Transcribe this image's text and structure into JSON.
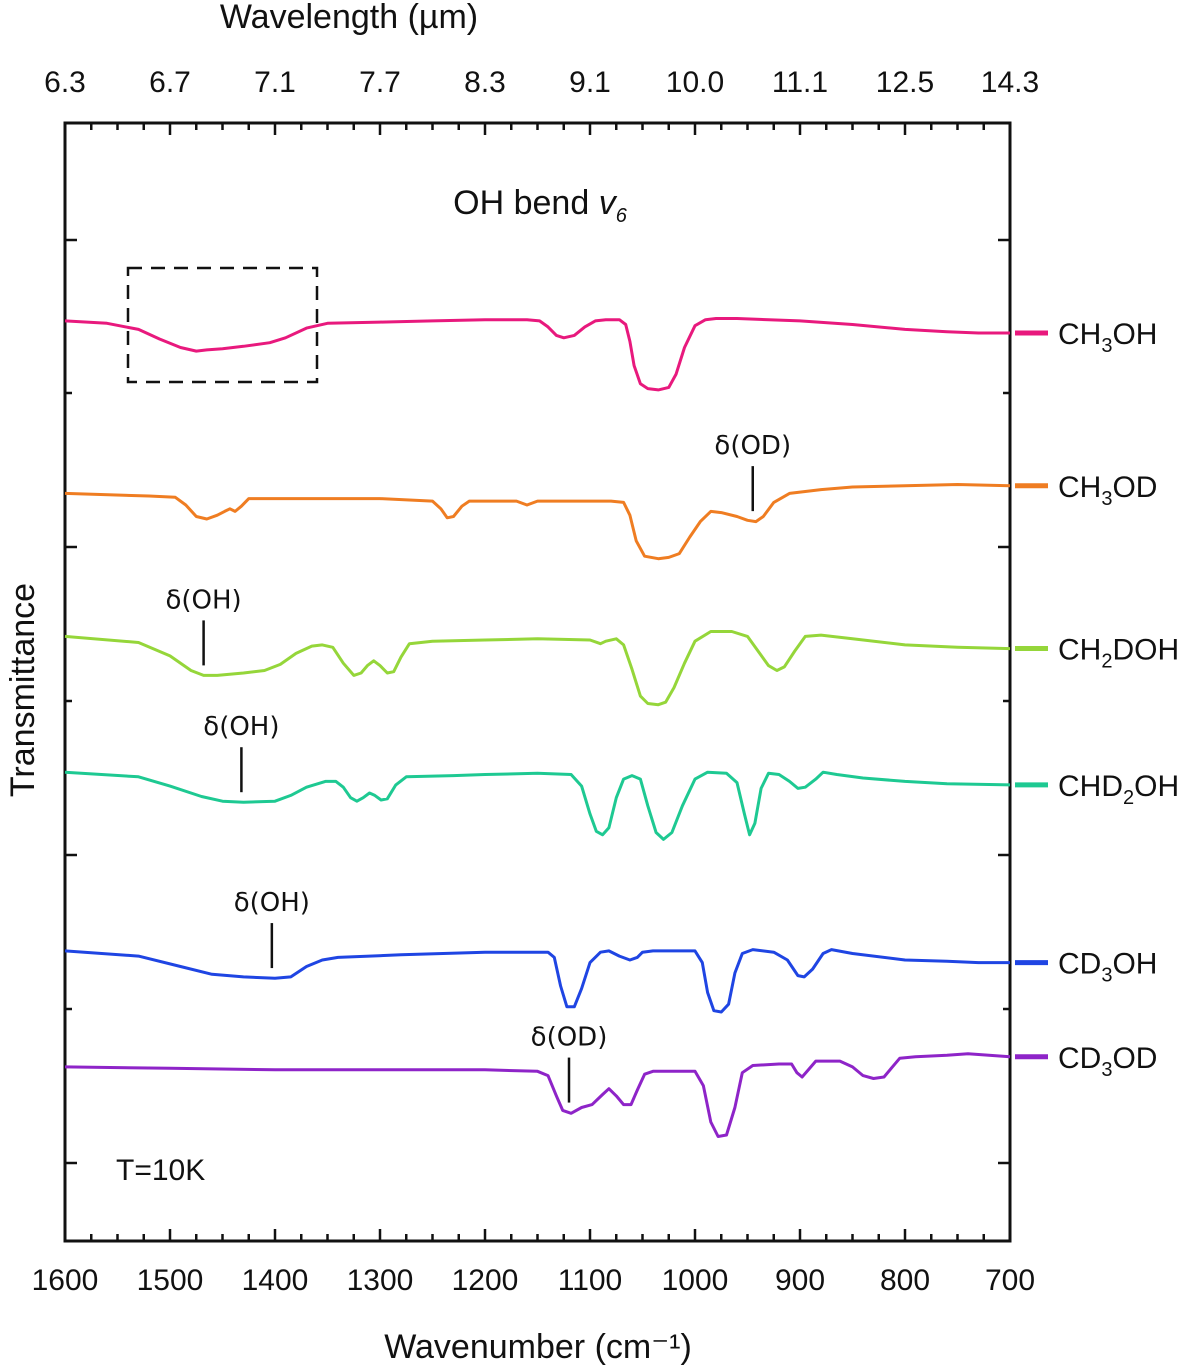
{
  "chart_data": {
    "type": "line",
    "xlabel": "Wavenumber (cm⁻¹)",
    "ylabel": "Transmittance",
    "top_xlabel": "Wavelength (µm)",
    "xlim": [
      1600,
      700
    ],
    "x_reversed": true,
    "x_ticks": [
      1600,
      1500,
      1400,
      1300,
      1200,
      1100,
      1000,
      900,
      800,
      700
    ],
    "top_tick_labels": [
      "6.3",
      "6.7",
      "7.1",
      "7.7",
      "8.3",
      "9.1",
      "10.0",
      "11.1",
      "12.5",
      "14.3"
    ],
    "title": "OH bend v6",
    "title_main": "OH bend ",
    "title_sym": "v",
    "title_sub": "6",
    "temperature_label": "T=10K",
    "grid": false,
    "legend_placement": "right",
    "series": [
      {
        "name": "CH3OH",
        "name_main": "CH",
        "name_sub": "3",
        "name_tail": "OH",
        "color": "#e8197d",
        "points": [
          [
            1600,
            0.72
          ],
          [
            1560,
            0.7
          ],
          [
            1530,
            0.65
          ],
          [
            1510,
            0.57
          ],
          [
            1490,
            0.5
          ],
          [
            1475,
            0.47
          ],
          [
            1465,
            0.48
          ],
          [
            1450,
            0.49
          ],
          [
            1430,
            0.51
          ],
          [
            1405,
            0.54
          ],
          [
            1390,
            0.58
          ],
          [
            1370,
            0.66
          ],
          [
            1350,
            0.7
          ],
          [
            1300,
            0.71
          ],
          [
            1250,
            0.72
          ],
          [
            1200,
            0.73
          ],
          [
            1160,
            0.73
          ],
          [
            1148,
            0.72
          ],
          [
            1140,
            0.67
          ],
          [
            1132,
            0.6
          ],
          [
            1125,
            0.58
          ],
          [
            1115,
            0.6
          ],
          [
            1105,
            0.67
          ],
          [
            1095,
            0.72
          ],
          [
            1085,
            0.73
          ],
          [
            1072,
            0.73
          ],
          [
            1066,
            0.69
          ],
          [
            1062,
            0.55
          ],
          [
            1058,
            0.35
          ],
          [
            1052,
            0.2
          ],
          [
            1045,
            0.16
          ],
          [
            1035,
            0.15
          ],
          [
            1025,
            0.17
          ],
          [
            1018,
            0.28
          ],
          [
            1010,
            0.5
          ],
          [
            1000,
            0.68
          ],
          [
            990,
            0.73
          ],
          [
            980,
            0.74
          ],
          [
            960,
            0.74
          ],
          [
            900,
            0.72
          ],
          [
            850,
            0.69
          ],
          [
            800,
            0.65
          ],
          [
            760,
            0.63
          ],
          [
            730,
            0.62
          ],
          [
            700,
            0.62
          ]
        ]
      },
      {
        "name": "CH3OD",
        "name_main": "CH",
        "name_sub": "3",
        "name_tail": "OD",
        "color": "#ef7d22",
        "points": [
          [
            1600,
            0.52
          ],
          [
            1520,
            0.5
          ],
          [
            1495,
            0.49
          ],
          [
            1485,
            0.43
          ],
          [
            1475,
            0.34
          ],
          [
            1465,
            0.32
          ],
          [
            1455,
            0.35
          ],
          [
            1448,
            0.38
          ],
          [
            1443,
            0.4
          ],
          [
            1438,
            0.38
          ],
          [
            1432,
            0.42
          ],
          [
            1425,
            0.48
          ],
          [
            1410,
            0.48
          ],
          [
            1300,
            0.48
          ],
          [
            1250,
            0.46
          ],
          [
            1242,
            0.4
          ],
          [
            1236,
            0.33
          ],
          [
            1230,
            0.34
          ],
          [
            1222,
            0.42
          ],
          [
            1215,
            0.46
          ],
          [
            1170,
            0.46
          ],
          [
            1160,
            0.43
          ],
          [
            1150,
            0.46
          ],
          [
            1080,
            0.46
          ],
          [
            1068,
            0.45
          ],
          [
            1062,
            0.35
          ],
          [
            1056,
            0.15
          ],
          [
            1048,
            0.03
          ],
          [
            1035,
            0.01
          ],
          [
            1025,
            0.02
          ],
          [
            1015,
            0.05
          ],
          [
            1005,
            0.18
          ],
          [
            995,
            0.3
          ],
          [
            985,
            0.38
          ],
          [
            975,
            0.37
          ],
          [
            960,
            0.34
          ],
          [
            950,
            0.31
          ],
          [
            942,
            0.3
          ],
          [
            935,
            0.34
          ],
          [
            925,
            0.45
          ],
          [
            910,
            0.52
          ],
          [
            880,
            0.55
          ],
          [
            850,
            0.57
          ],
          [
            800,
            0.58
          ],
          [
            750,
            0.59
          ],
          [
            700,
            0.58
          ]
        ]
      },
      {
        "name": "CH2DOH",
        "name_main": "CH",
        "name_sub": "2",
        "name_tail": "DOH",
        "color": "#95d63a",
        "points": [
          [
            1600,
            0.62
          ],
          [
            1530,
            0.57
          ],
          [
            1500,
            0.46
          ],
          [
            1480,
            0.34
          ],
          [
            1468,
            0.3
          ],
          [
            1455,
            0.3
          ],
          [
            1430,
            0.32
          ],
          [
            1410,
            0.34
          ],
          [
            1395,
            0.39
          ],
          [
            1380,
            0.48
          ],
          [
            1365,
            0.54
          ],
          [
            1355,
            0.55
          ],
          [
            1345,
            0.53
          ],
          [
            1335,
            0.4
          ],
          [
            1325,
            0.3
          ],
          [
            1318,
            0.32
          ],
          [
            1312,
            0.38
          ],
          [
            1306,
            0.42
          ],
          [
            1300,
            0.38
          ],
          [
            1293,
            0.32
          ],
          [
            1287,
            0.33
          ],
          [
            1280,
            0.45
          ],
          [
            1272,
            0.56
          ],
          [
            1250,
            0.58
          ],
          [
            1200,
            0.59
          ],
          [
            1150,
            0.6
          ],
          [
            1100,
            0.59
          ],
          [
            1090,
            0.56
          ],
          [
            1085,
            0.58
          ],
          [
            1075,
            0.6
          ],
          [
            1068,
            0.55
          ],
          [
            1060,
            0.35
          ],
          [
            1052,
            0.13
          ],
          [
            1045,
            0.07
          ],
          [
            1035,
            0.06
          ],
          [
            1028,
            0.08
          ],
          [
            1020,
            0.2
          ],
          [
            1010,
            0.4
          ],
          [
            1000,
            0.58
          ],
          [
            985,
            0.66
          ],
          [
            965,
            0.66
          ],
          [
            950,
            0.62
          ],
          [
            940,
            0.5
          ],
          [
            930,
            0.38
          ],
          [
            922,
            0.34
          ],
          [
            915,
            0.37
          ],
          [
            905,
            0.5
          ],
          [
            895,
            0.62
          ],
          [
            880,
            0.63
          ],
          [
            850,
            0.6
          ],
          [
            800,
            0.55
          ],
          [
            750,
            0.53
          ],
          [
            700,
            0.52
          ]
        ]
      },
      {
        "name": "CHD2OH",
        "name_main": "CHD",
        "name_sub": "2",
        "name_tail": "OH",
        "color": "#1ec992",
        "points": [
          [
            1600,
            0.74
          ],
          [
            1530,
            0.7
          ],
          [
            1500,
            0.62
          ],
          [
            1470,
            0.53
          ],
          [
            1450,
            0.49
          ],
          [
            1430,
            0.48
          ],
          [
            1400,
            0.49
          ],
          [
            1385,
            0.54
          ],
          [
            1370,
            0.61
          ],
          [
            1352,
            0.66
          ],
          [
            1342,
            0.66
          ],
          [
            1335,
            0.61
          ],
          [
            1328,
            0.52
          ],
          [
            1322,
            0.49
          ],
          [
            1316,
            0.52
          ],
          [
            1310,
            0.56
          ],
          [
            1305,
            0.54
          ],
          [
            1299,
            0.5
          ],
          [
            1293,
            0.51
          ],
          [
            1285,
            0.63
          ],
          [
            1275,
            0.7
          ],
          [
            1230,
            0.71
          ],
          [
            1200,
            0.72
          ],
          [
            1150,
            0.73
          ],
          [
            1118,
            0.72
          ],
          [
            1108,
            0.62
          ],
          [
            1100,
            0.38
          ],
          [
            1094,
            0.23
          ],
          [
            1088,
            0.2
          ],
          [
            1082,
            0.26
          ],
          [
            1075,
            0.52
          ],
          [
            1068,
            0.68
          ],
          [
            1060,
            0.71
          ],
          [
            1052,
            0.68
          ],
          [
            1045,
            0.45
          ],
          [
            1037,
            0.22
          ],
          [
            1030,
            0.16
          ],
          [
            1022,
            0.22
          ],
          [
            1012,
            0.45
          ],
          [
            1000,
            0.68
          ],
          [
            988,
            0.74
          ],
          [
            970,
            0.73
          ],
          [
            960,
            0.65
          ],
          [
            953,
            0.38
          ],
          [
            948,
            0.2
          ],
          [
            943,
            0.3
          ],
          [
            937,
            0.6
          ],
          [
            930,
            0.73
          ],
          [
            920,
            0.72
          ],
          [
            910,
            0.66
          ],
          [
            902,
            0.6
          ],
          [
            895,
            0.61
          ],
          [
            885,
            0.68
          ],
          [
            878,
            0.74
          ],
          [
            865,
            0.72
          ],
          [
            840,
            0.69
          ],
          [
            800,
            0.66
          ],
          [
            760,
            0.64
          ],
          [
            700,
            0.63
          ]
        ]
      },
      {
        "name": "CD3OH",
        "name_main": "CD",
        "name_sub": "3",
        "name_tail": "OH",
        "color": "#1f45e3",
        "points": [
          [
            1600,
            0.57
          ],
          [
            1530,
            0.53
          ],
          [
            1490,
            0.45
          ],
          [
            1460,
            0.39
          ],
          [
            1430,
            0.37
          ],
          [
            1400,
            0.36
          ],
          [
            1385,
            0.37
          ],
          [
            1370,
            0.45
          ],
          [
            1355,
            0.5
          ],
          [
            1340,
            0.52
          ],
          [
            1280,
            0.54
          ],
          [
            1200,
            0.56
          ],
          [
            1140,
            0.56
          ],
          [
            1134,
            0.52
          ],
          [
            1128,
            0.3
          ],
          [
            1122,
            0.14
          ],
          [
            1115,
            0.14
          ],
          [
            1108,
            0.28
          ],
          [
            1100,
            0.48
          ],
          [
            1090,
            0.56
          ],
          [
            1082,
            0.57
          ],
          [
            1072,
            0.53
          ],
          [
            1062,
            0.5
          ],
          [
            1055,
            0.52
          ],
          [
            1050,
            0.56
          ],
          [
            1040,
            0.57
          ],
          [
            1000,
            0.57
          ],
          [
            993,
            0.48
          ],
          [
            988,
            0.25
          ],
          [
            982,
            0.11
          ],
          [
            975,
            0.1
          ],
          [
            968,
            0.16
          ],
          [
            962,
            0.4
          ],
          [
            955,
            0.55
          ],
          [
            945,
            0.58
          ],
          [
            925,
            0.56
          ],
          [
            912,
            0.5
          ],
          [
            902,
            0.38
          ],
          [
            896,
            0.37
          ],
          [
            888,
            0.43
          ],
          [
            878,
            0.55
          ],
          [
            870,
            0.58
          ],
          [
            850,
            0.55
          ],
          [
            800,
            0.5
          ],
          [
            760,
            0.49
          ],
          [
            730,
            0.48
          ],
          [
            700,
            0.48
          ]
        ]
      },
      {
        "name": "CD3OD",
        "name_main": "CD",
        "name_sub": "3",
        "name_tail": "OD",
        "color": "#8e24c8",
        "points": [
          [
            1600,
            0.78
          ],
          [
            1500,
            0.77
          ],
          [
            1400,
            0.76
          ],
          [
            1300,
            0.76
          ],
          [
            1200,
            0.76
          ],
          [
            1150,
            0.75
          ],
          [
            1140,
            0.72
          ],
          [
            1132,
            0.58
          ],
          [
            1126,
            0.48
          ],
          [
            1118,
            0.46
          ],
          [
            1108,
            0.5
          ],
          [
            1098,
            0.52
          ],
          [
            1088,
            0.59
          ],
          [
            1082,
            0.63
          ],
          [
            1075,
            0.58
          ],
          [
            1068,
            0.52
          ],
          [
            1061,
            0.52
          ],
          [
            1055,
            0.62
          ],
          [
            1048,
            0.73
          ],
          [
            1040,
            0.75
          ],
          [
            1000,
            0.75
          ],
          [
            992,
            0.65
          ],
          [
            985,
            0.4
          ],
          [
            978,
            0.3
          ],
          [
            970,
            0.31
          ],
          [
            962,
            0.5
          ],
          [
            955,
            0.74
          ],
          [
            945,
            0.79
          ],
          [
            920,
            0.8
          ],
          [
            908,
            0.8
          ],
          [
            903,
            0.74
          ],
          [
            898,
            0.71
          ],
          [
            892,
            0.76
          ],
          [
            885,
            0.82
          ],
          [
            875,
            0.82
          ],
          [
            862,
            0.82
          ],
          [
            850,
            0.78
          ],
          [
            840,
            0.72
          ],
          [
            830,
            0.7
          ],
          [
            820,
            0.71
          ],
          [
            812,
            0.78
          ],
          [
            805,
            0.84
          ],
          [
            790,
            0.85
          ],
          [
            760,
            0.86
          ],
          [
            740,
            0.87
          ],
          [
            720,
            0.86
          ],
          [
            700,
            0.85
          ]
        ]
      }
    ],
    "annotations": [
      {
        "text": "δ(OD)",
        "series": 1,
        "x": 945
      },
      {
        "text": "δ(OH)",
        "series": 2,
        "x": 1468
      },
      {
        "text": "δ(OH)",
        "series": 3,
        "x": 1432
      },
      {
        "text": "δ(OH)",
        "series": 4,
        "x": 1403
      },
      {
        "text": "δ(OD)",
        "series": 5,
        "x": 1120
      }
    ],
    "highlight_box": {
      "series": 0,
      "x_from": 1540,
      "x_to": 1360
    }
  }
}
